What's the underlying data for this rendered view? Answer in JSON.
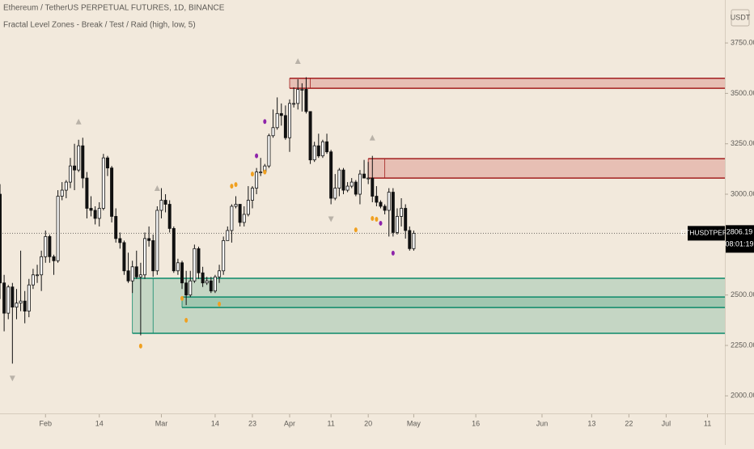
{
  "chart_data": {
    "type": "candlestick",
    "title": "Ethereum / TetherUS PERPETUAL FUTURES, 1D, BINANCE",
    "subtitle": "Fractal Level Zones - Break / Test / Raid (high, low, 5)",
    "currency": "USDT",
    "symbol": "ETHUSDTPERP",
    "last_price": 2806.19,
    "countdown": "08:01:19",
    "up_color": "#ffffff",
    "down_color": "#111111",
    "x": [
      "01-21",
      "01-22",
      "01-23",
      "01-24",
      "01-25",
      "01-26",
      "01-27",
      "01-28",
      "01-29",
      "01-30",
      "01-31",
      "02-01",
      "02-02",
      "02-03",
      "02-04",
      "02-05",
      "02-06",
      "02-07",
      "02-08",
      "02-09",
      "02-10",
      "02-11",
      "02-12",
      "02-13",
      "02-14",
      "02-15",
      "02-16",
      "02-17",
      "02-18",
      "02-19",
      "02-20",
      "02-21",
      "02-22",
      "02-23",
      "02-24",
      "02-25",
      "02-26",
      "02-27",
      "02-28",
      "03-01",
      "03-02",
      "03-03",
      "03-04",
      "03-05",
      "03-06",
      "03-07",
      "03-08",
      "03-09",
      "03-10",
      "03-11",
      "03-12",
      "03-13",
      "03-14",
      "03-15",
      "03-16",
      "03-17",
      "03-18",
      "03-19",
      "03-20",
      "03-21",
      "03-22",
      "03-23",
      "03-24",
      "03-25",
      "03-26",
      "03-27",
      "03-28",
      "03-29",
      "03-30",
      "03-31",
      "04-01",
      "04-02",
      "04-03",
      "04-04",
      "04-05",
      "04-06",
      "04-07",
      "04-08",
      "04-09",
      "04-10",
      "04-11",
      "04-12",
      "04-13",
      "04-14",
      "04-15",
      "04-16",
      "04-17",
      "04-18",
      "04-19",
      "04-20",
      "04-21",
      "04-22",
      "04-23",
      "04-24",
      "04-25",
      "04-26",
      "04-27",
      "04-28",
      "04-29",
      "04-30",
      "05-01"
    ],
    "open": [
      3000,
      2560,
      2410,
      2540,
      2440,
      2460,
      2470,
      2420,
      2550,
      2600,
      2600,
      2690,
      2790,
      2690,
      2670,
      2990,
      3020,
      3060,
      3140,
      3120,
      3240,
      3080,
      2930,
      2920,
      2880,
      2930,
      3180,
      3130,
      2890,
      2780,
      2760,
      2620,
      2570,
      2640,
      2590,
      2600,
      2780,
      2770,
      2620,
      2920,
      2970,
      2950,
      2830,
      2620,
      2660,
      2560,
      2500,
      2570,
      2730,
      2610,
      2560,
      2570,
      2520,
      2590,
      2620,
      2770,
      2820,
      2940,
      2950,
      2860,
      2900,
      2970,
      3030,
      3110,
      3110,
      3140,
      3290,
      3330,
      3400,
      3390,
      3280,
      3450,
      3450,
      3520,
      3520,
      3410,
      3170,
      3240,
      3190,
      3260,
      3210,
      2980,
      3030,
      3120,
      3020,
      3040,
      3060,
      3000,
      3100,
      3080,
      3080,
      2990,
      2960,
      2940,
      2920,
      3010,
      2810,
      2890,
      2930,
      2820,
      2730
    ],
    "high": [
      3050,
      2600,
      2550,
      2560,
      2530,
      2720,
      2520,
      2580,
      2630,
      2650,
      2720,
      2820,
      2800,
      2700,
      3020,
      3060,
      3070,
      3180,
      3250,
      3270,
      3280,
      3110,
      2990,
      2940,
      2960,
      3200,
      3190,
      3140,
      2930,
      2810,
      2770,
      2710,
      2670,
      2720,
      2660,
      2810,
      2840,
      2800,
      2940,
      3030,
      3000,
      2970,
      2840,
      2680,
      2670,
      2620,
      2620,
      2750,
      2740,
      2640,
      2590,
      2590,
      2600,
      2650,
      2790,
      2840,
      2950,
      2990,
      2950,
      2940,
      3040,
      3040,
      3130,
      3180,
      3150,
      3300,
      3420,
      3480,
      3450,
      3440,
      3470,
      3530,
      3570,
      3550,
      3580,
      3410,
      3260,
      3300,
      3270,
      3300,
      3220,
      3100,
      3130,
      3130,
      3060,
      3080,
      3070,
      3120,
      3170,
      3160,
      3190,
      3040,
      2970,
      2950,
      3030,
      3030,
      2930,
      2980,
      2950,
      2840,
      2820
    ],
    "low": [
      2480,
      2320,
      2380,
      2160,
      2380,
      2420,
      2360,
      2390,
      2530,
      2560,
      2520,
      2660,
      2660,
      2600,
      2660,
      2970,
      2980,
      3030,
      3020,
      3110,
      3030,
      2880,
      2890,
      2850,
      2840,
      2920,
      3090,
      2860,
      2760,
      2730,
      2600,
      2560,
      2510,
      2580,
      2300,
      2580,
      2740,
      2590,
      2600,
      2880,
      2910,
      2810,
      2610,
      2600,
      2530,
      2450,
      2490,
      2560,
      2580,
      2540,
      2550,
      2510,
      2510,
      2560,
      2600,
      2770,
      2760,
      2930,
      2840,
      2840,
      2890,
      2930,
      3000,
      3090,
      3100,
      3130,
      3280,
      3320,
      3340,
      3270,
      3210,
      3430,
      3420,
      3410,
      3400,
      3150,
      3160,
      3180,
      3180,
      3200,
      2950,
      2970,
      2990,
      3000,
      3010,
      3030,
      2990,
      2950,
      3080,
      3050,
      2960,
      2940,
      2930,
      2900,
      2790,
      2790,
      2800,
      2840,
      2780,
      2720,
      2720
    ],
    "close": [
      2560,
      2410,
      2540,
      2440,
      2460,
      2470,
      2420,
      2550,
      2600,
      2600,
      2690,
      2790,
      2690,
      2670,
      2990,
      3020,
      3060,
      3140,
      3120,
      3240,
      3080,
      2930,
      2920,
      2880,
      2930,
      3180,
      3130,
      2890,
      2780,
      2760,
      2620,
      2570,
      2640,
      2590,
      2600,
      2780,
      2770,
      2620,
      2920,
      2970,
      2950,
      2830,
      2620,
      2660,
      2560,
      2500,
      2570,
      2730,
      2610,
      2560,
      2570,
      2520,
      2590,
      2620,
      2770,
      2820,
      2940,
      2950,
      2860,
      2900,
      2970,
      3030,
      3110,
      3110,
      3140,
      3290,
      3330,
      3400,
      3390,
      3280,
      3450,
      3450,
      3520,
      3520,
      3410,
      3170,
      3240,
      3190,
      3260,
      3210,
      2980,
      3030,
      3120,
      3020,
      3040,
      3060,
      3000,
      3100,
      3080,
      3080,
      2990,
      2960,
      2940,
      2920,
      3010,
      2810,
      2890,
      2930,
      2820,
      2730,
      2806.19
    ],
    "zones": [
      {
        "top": 3575,
        "bottom": 3525,
        "start": "04-01",
        "mid": "04-06",
        "color": "#a31f1f",
        "fill": "rgba(190,40,40,0.22)"
      },
      {
        "top": 3176,
        "bottom": 3080,
        "start": "04-20",
        "mid": "04-24",
        "color": "#a31f1f",
        "fill": "rgba(190,40,40,0.22)"
      },
      {
        "top": 2583,
        "bottom": 2310,
        "start": "02-22",
        "mid": "02-27",
        "color": "#0d8a6a",
        "fill": "rgba(20,140,100,0.2)"
      },
      {
        "top": 2490,
        "bottom": 2438,
        "start": "03-06",
        "color": "#0d8a6a",
        "fill": "rgba(20,140,100,0.2)"
      }
    ],
    "fractal_highs": [
      "02-09",
      "02-28",
      "04-03",
      "04-21"
    ],
    "fractal_lows": [
      "01-24",
      "04-11"
    ],
    "fractal_color": "#b9b2a8",
    "markers": [
      {
        "x": "02-24",
        "price": 2247,
        "color": "#f0a020"
      },
      {
        "x": "03-06",
        "price": 2483,
        "color": "#f0a020"
      },
      {
        "x": "03-07",
        "price": 2375,
        "color": "#f0a020"
      },
      {
        "x": "03-15",
        "price": 2455,
        "color": "#f0a020"
      },
      {
        "x": "03-18",
        "price": 3040,
        "color": "#f0a020"
      },
      {
        "x": "03-19",
        "price": 3048,
        "color": "#f0a020"
      },
      {
        "x": "03-23",
        "price": 3100,
        "color": "#f0a020"
      },
      {
        "x": "03-24",
        "price": 3190,
        "color": "#8e24aa"
      },
      {
        "x": "03-26",
        "price": 3360,
        "color": "#8e24aa"
      },
      {
        "x": "03-26",
        "price": 3110,
        "color": "#f0a020"
      },
      {
        "x": "04-17",
        "price": 2823,
        "color": "#f0a020"
      },
      {
        "x": "04-21",
        "price": 2880,
        "color": "#f0a020"
      },
      {
        "x": "04-22",
        "price": 2876,
        "color": "#f0a020"
      },
      {
        "x": "04-23",
        "price": 2856,
        "color": "#8e24aa"
      },
      {
        "x": "04-26",
        "price": 2708,
        "color": "#8e24aa"
      }
    ],
    "xlim": [
      "01-21",
      "07-15"
    ],
    "xticks": [
      {
        "value": "02-01",
        "label": "Feb"
      },
      {
        "value": "02-14",
        "label": "14"
      },
      {
        "value": "03-01",
        "label": "Mar"
      },
      {
        "value": "03-14",
        "label": "14"
      },
      {
        "value": "03-23",
        "label": "23"
      },
      {
        "value": "04-01",
        "label": "Apr"
      },
      {
        "value": "04-11",
        "label": "11"
      },
      {
        "value": "04-20",
        "label": "20"
      },
      {
        "value": "05-01",
        "label": "May"
      },
      {
        "value": "05-16",
        "label": "16"
      },
      {
        "value": "06-01",
        "label": "Jun"
      },
      {
        "value": "06-13",
        "label": "13"
      },
      {
        "value": "06-22",
        "label": "22"
      },
      {
        "value": "07-01",
        "label": "Jul"
      },
      {
        "value": "07-11",
        "label": "11"
      }
    ],
    "ylim": [
      1917,
      3963
    ],
    "yticks": [
      {
        "value": 2000,
        "label": "2000.00"
      },
      {
        "value": 2250,
        "label": "2250.00"
      },
      {
        "value": 2500,
        "label": "2500.00"
      },
      {
        "value": 3000,
        "label": "3000.00"
      },
      {
        "value": 3250,
        "label": "3250.00"
      },
      {
        "value": 3500,
        "label": "3500.00"
      },
      {
        "value": 3750,
        "label": "3750.00"
      }
    ]
  }
}
